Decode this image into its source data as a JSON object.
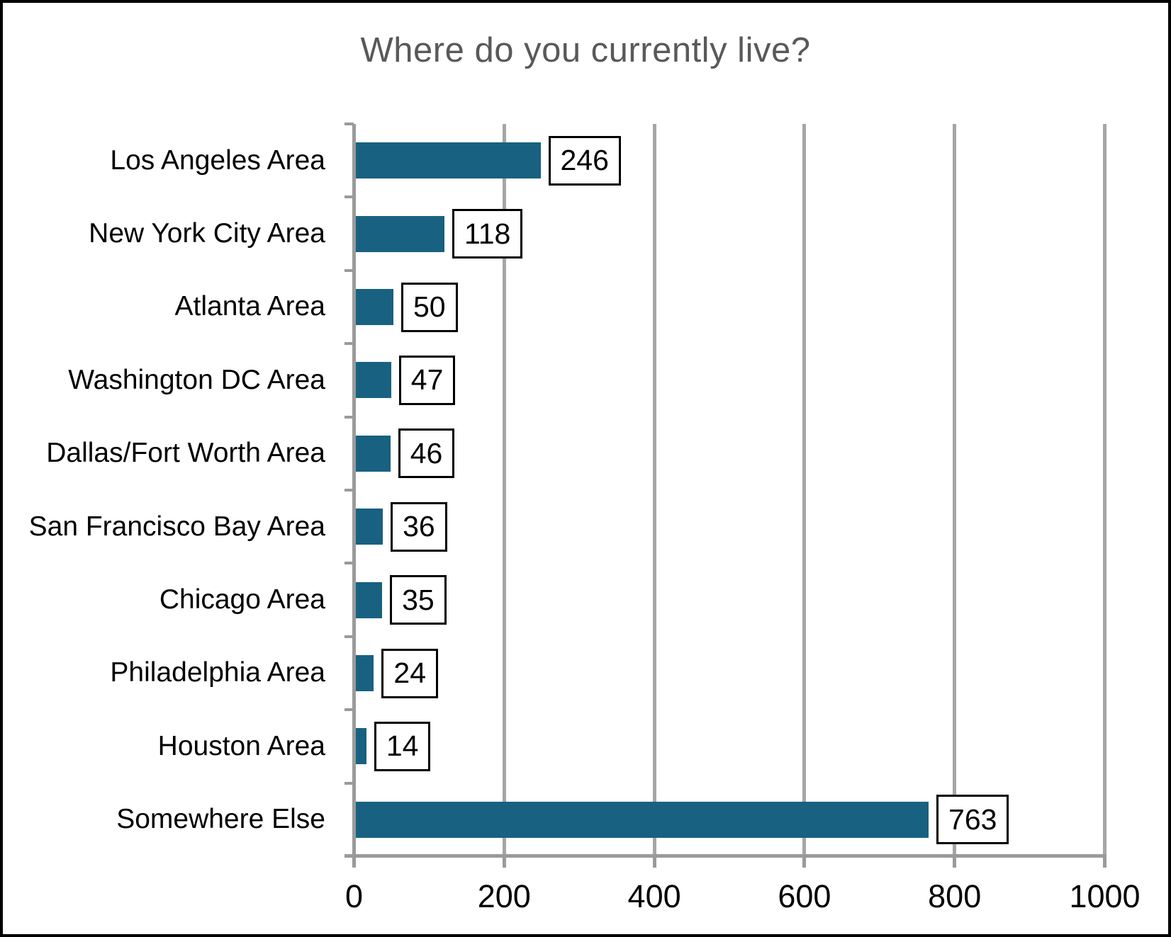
{
  "chart_data": {
    "type": "bar",
    "orientation": "horizontal",
    "title": "Where do you currently live?",
    "categories": [
      "Los Angeles Area",
      "New York City Area",
      "Atlanta Area",
      "Washington DC Area",
      "Dallas/Fort Worth Area",
      "San Francisco Bay Area",
      "Chicago Area",
      "Philadelphia Area",
      "Houston Area",
      "Somewhere Else"
    ],
    "values": [
      246,
      118,
      50,
      47,
      46,
      36,
      35,
      24,
      14,
      763
    ],
    "data_labels": [
      "246",
      "118",
      "50",
      "47",
      "46",
      "36",
      "35",
      "24",
      "14",
      "763"
    ],
    "xlabel": "",
    "ylabel": "",
    "xlim": [
      0,
      1000
    ],
    "x_ticks": [
      0,
      200,
      400,
      600,
      800,
      1000
    ],
    "grid": "vertical",
    "legend": "none",
    "data_label_style": "boxed",
    "colors": {
      "bar": "#186181",
      "gridline": "#A6A6A6",
      "axis": "#9A9A9A",
      "title_text": "#595959",
      "label_text": "#000000",
      "data_label_box_fill": "#FFFFFF",
      "data_label_box_border": "#000000",
      "background": "#FFFFFF",
      "outer_border": "#000000"
    }
  }
}
